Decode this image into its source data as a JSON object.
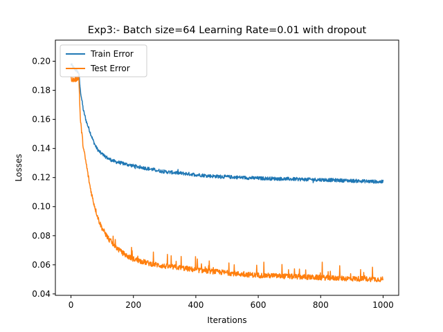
{
  "chart_data": {
    "type": "line",
    "title": "Exp3:- Batch size=64 Learning Rate=0.01 with dropout",
    "xlabel": "Iterations",
    "ylabel": "Losses",
    "xlim": [
      -50,
      1050
    ],
    "ylim": [
      0.039,
      0.2145
    ],
    "xticks": [
      0,
      200,
      400,
      600,
      800,
      1000
    ],
    "xtick_labels": [
      "0",
      "200",
      "400",
      "600",
      "800",
      "1000"
    ],
    "yticks": [
      0.04,
      0.06,
      0.08,
      0.1,
      0.12,
      0.14,
      0.16,
      0.18,
      0.2
    ],
    "ytick_labels": [
      "0.04",
      "0.06",
      "0.08",
      "0.10",
      "0.12",
      "0.14",
      "0.16",
      "0.18",
      "0.20"
    ],
    "grid": false,
    "legend_position": "upper-left",
    "series": [
      {
        "name": "Train Error",
        "color": "#1f77b4",
        "noise": 0.0012,
        "points": [
          [
            0,
            0.198
          ],
          [
            10,
            0.195
          ],
          [
            20,
            0.193
          ],
          [
            25,
            0.192
          ],
          [
            30,
            0.18
          ],
          [
            40,
            0.166
          ],
          [
            50,
            0.158
          ],
          [
            60,
            0.152
          ],
          [
            70,
            0.146
          ],
          [
            80,
            0.141
          ],
          [
            90,
            0.138
          ],
          [
            100,
            0.136
          ],
          [
            120,
            0.133
          ],
          [
            140,
            0.131
          ],
          [
            160,
            0.13
          ],
          [
            180,
            0.129
          ],
          [
            200,
            0.128
          ],
          [
            250,
            0.126
          ],
          [
            300,
            0.124
          ],
          [
            350,
            0.123
          ],
          [
            400,
            0.122
          ],
          [
            450,
            0.121
          ],
          [
            500,
            0.1205
          ],
          [
            550,
            0.12
          ],
          [
            600,
            0.1195
          ],
          [
            700,
            0.119
          ],
          [
            800,
            0.1185
          ],
          [
            900,
            0.1178
          ],
          [
            1000,
            0.117
          ]
        ]
      },
      {
        "name": "Test Error",
        "color": "#ff7f0e",
        "noise": 0.0018,
        "points": [
          [
            0,
            0.188
          ],
          [
            10,
            0.187
          ],
          [
            20,
            0.188
          ],
          [
            25,
            0.19
          ],
          [
            30,
            0.16
          ],
          [
            40,
            0.14
          ],
          [
            50,
            0.128
          ],
          [
            60,
            0.115
          ],
          [
            70,
            0.105
          ],
          [
            80,
            0.097
          ],
          [
            90,
            0.09
          ],
          [
            100,
            0.085
          ],
          [
            120,
            0.078
          ],
          [
            140,
            0.073
          ],
          [
            160,
            0.069
          ],
          [
            180,
            0.066
          ],
          [
            200,
            0.064
          ],
          [
            250,
            0.061
          ],
          [
            300,
            0.059
          ],
          [
            350,
            0.058
          ],
          [
            400,
            0.0565
          ],
          [
            450,
            0.0555
          ],
          [
            500,
            0.0545
          ],
          [
            550,
            0.0535
          ],
          [
            600,
            0.0528
          ],
          [
            700,
            0.052
          ],
          [
            800,
            0.0512
          ],
          [
            900,
            0.0505
          ],
          [
            1000,
            0.05
          ]
        ]
      }
    ]
  }
}
